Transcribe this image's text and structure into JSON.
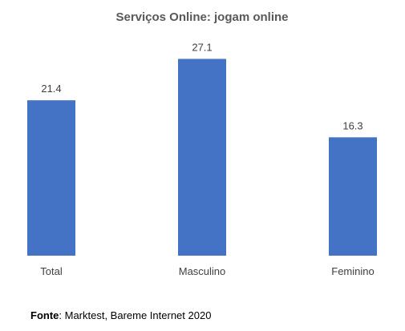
{
  "chart_data": {
    "type": "bar",
    "title": "Serviços Online: jogam online",
    "categories": [
      "Total",
      "Masculino",
      "Feminino"
    ],
    "values": [
      21.4,
      27.1,
      16.3
    ],
    "data_labels": [
      "21.4",
      "27.1",
      "16.3"
    ],
    "bar_color": "#4472C4",
    "ylim": [
      0,
      30
    ],
    "grid": false,
    "legend": "none"
  },
  "source": {
    "label": "Fonte",
    "text": ": Marktest, Bareme Internet 2020"
  }
}
